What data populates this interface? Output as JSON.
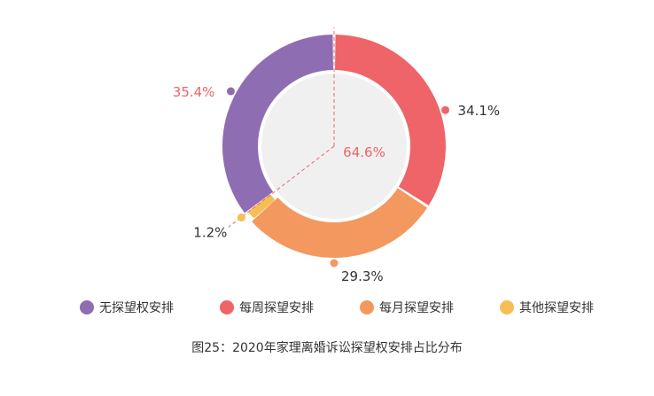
{
  "chart_data": {
    "type": "pie",
    "categories": [
      "无探望权安排",
      "每周探望安排",
      "每月探望安排",
      "其他探望安排"
    ],
    "values": [
      35.4,
      34.1,
      29.3,
      1.2
    ],
    "value_labels": [
      "35.4%",
      "34.1%",
      "29.3%",
      "1.2%"
    ],
    "inner_label": "64.6%",
    "colors": [
      "#8e6db2",
      "#ee6468",
      "#f3985f",
      "#f6bf55"
    ],
    "label_colors": [
      "#ee6468",
      "#333333",
      "#333333",
      "#333333"
    ],
    "inner_label_color": "#ee6468",
    "inner_fill": "#f0f0f0",
    "guide_line_color": "#ee6468",
    "legend": {
      "position": "bottom",
      "items": [
        "无探望权安排",
        "每周探望安排",
        "每月探望安排",
        "其他探望安排"
      ]
    }
  },
  "caption": "图25：2020年家理离婚诉讼探望权安排占比分布"
}
